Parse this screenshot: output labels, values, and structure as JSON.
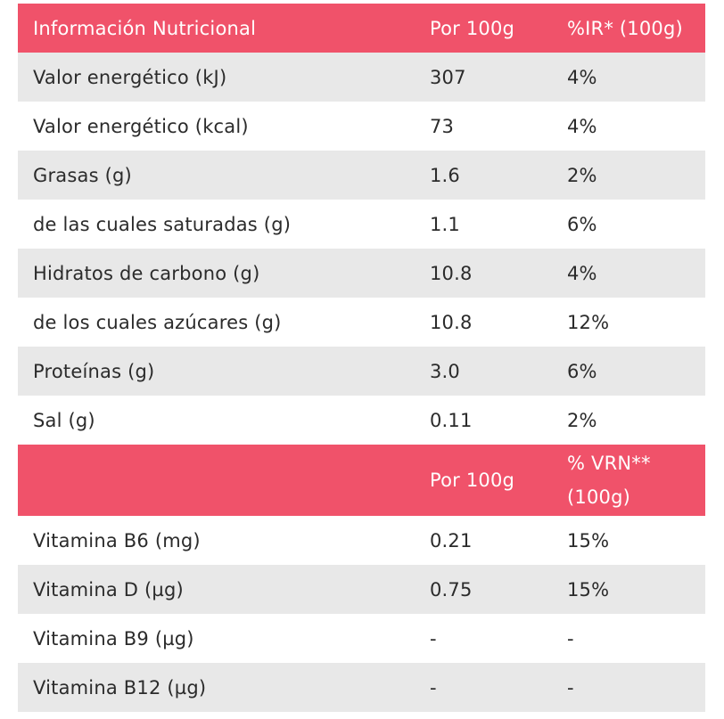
{
  "header": {
    "col1": "Información Nutricional",
    "col2": "Por 100g",
    "col3": "%IR* (100g)"
  },
  "nutrients": [
    {
      "name": "Valor energético (kJ)",
      "per100": "307",
      "ir": "4%"
    },
    {
      "name": "Valor energético (kcal)",
      "per100": "73",
      "ir": "4%"
    },
    {
      "name": "Grasas (g)",
      "per100": "1.6",
      "ir": "2%"
    },
    {
      "name": "de las cuales saturadas (g)",
      "per100": "1.1",
      "ir": "6%"
    },
    {
      "name": "Hidratos de carbono (g)",
      "per100": "10.8",
      "ir": "4%"
    },
    {
      "name": "de los cuales azúcares (g)",
      "per100": "10.8",
      "ir": "12%"
    },
    {
      "name": "Proteínas (g)",
      "per100": "3.0",
      "ir": "6%"
    },
    {
      "name": "Sal (g)",
      "per100": "0.11",
      "ir": "2%"
    }
  ],
  "vitamin_header": {
    "col1": "",
    "col2": "Por 100g",
    "col3": "% VRN** (100g)"
  },
  "vitamins": [
    {
      "name": "Vitamina B6 (mg)",
      "per100": "0.21",
      "vrn": "15%"
    },
    {
      "name": "Vitamina D (µg)",
      "per100": "0.75",
      "vrn": "15%"
    },
    {
      "name": "Vitamina B9 (µg)",
      "per100": "-",
      "vrn": "-"
    },
    {
      "name": "Vitamina B12 (µg)",
      "per100": "-",
      "vrn": "-"
    }
  ],
  "colors": {
    "header_bg": "#f0526a",
    "shade_bg": "#e8e8e8",
    "text": "#2b2b2b"
  }
}
